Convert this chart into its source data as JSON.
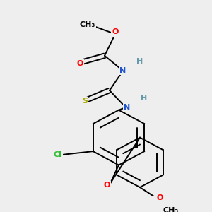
{
  "background_color": "#eeeeee",
  "lw": 1.4,
  "fs": 8.0,
  "colors": {
    "C": "black",
    "O": "red",
    "N": "#2255cc",
    "S": "#aaaa00",
    "Cl": "#33bb33",
    "H": "#6699aa"
  }
}
